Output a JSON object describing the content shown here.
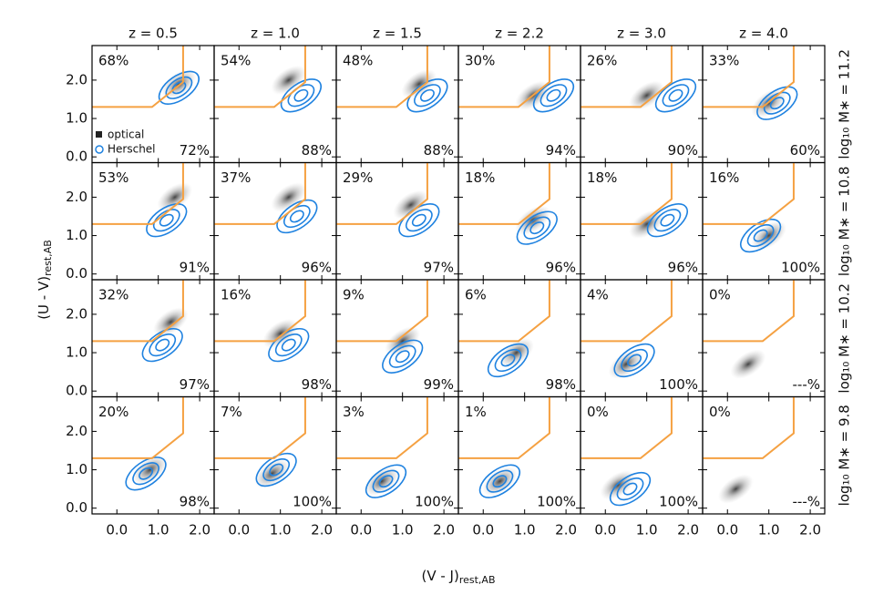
{
  "chart_data": {
    "type": "contour",
    "columns": [
      "z = 0.5",
      "z = 1.0",
      "z = 1.5",
      "z = 2.2",
      "z = 3.0",
      "z = 4.0"
    ],
    "rows": [
      "log₁₀ M∗ = 11.2",
      "log₁₀ M∗ = 10.8",
      "log₁₀ M∗ = 10.2",
      "log₁₀ M∗ = 9.8"
    ],
    "xlabel": {
      "main": "(V - J)",
      "sub": "rest,AB"
    },
    "ylabel": {
      "main": "(U - V)",
      "sub": "rest,AB"
    },
    "xlim": [
      -0.6,
      2.35
    ],
    "ylim": [
      -0.15,
      2.9
    ],
    "xticks": [
      {
        "value": 0,
        "label": "0.0"
      },
      {
        "value": 1,
        "label": "1.0"
      },
      {
        "value": 2,
        "label": "2.0"
      }
    ],
    "yticks": [
      {
        "value": 0,
        "label": "0.0"
      },
      {
        "value": 1,
        "label": "1.0"
      },
      {
        "value": 2,
        "label": "2.0"
      }
    ],
    "selection": {
      "color": "#f5a142",
      "x": [
        -0.6,
        0.85,
        1.6,
        1.6
      ],
      "y": [
        1.3,
        1.3,
        1.95,
        2.9
      ]
    },
    "series": [
      {
        "name": "optical",
        "color": "#222222",
        "values": [
          [
            68,
            54,
            48,
            30,
            26,
            33
          ],
          [
            53,
            37,
            29,
            18,
            18,
            16
          ],
          [
            32,
            16,
            9,
            6,
            4,
            0
          ],
          [
            20,
            7,
            3,
            1,
            0,
            0
          ]
        ],
        "value_labels": [
          [
            "68%",
            "54%",
            "48%",
            "30%",
            "26%",
            "33%"
          ],
          [
            "53%",
            "37%",
            "29%",
            "18%",
            "18%",
            "16%"
          ],
          [
            "32%",
            "16%",
            "9%",
            "6%",
            "4%",
            "0%"
          ],
          [
            "20%",
            "7%",
            "3%",
            "1%",
            "0%",
            "0%"
          ]
        ],
        "centers": [
          [
            [
              1.5,
              1.9
            ],
            [
              1.2,
              2.0
            ],
            [
              1.4,
              1.9
            ],
            [
              1.2,
              1.6
            ],
            [
              1.0,
              1.6
            ],
            [
              1.0,
              1.4
            ]
          ],
          [
            [
              1.4,
              2.0
            ],
            [
              1.2,
              2.0
            ],
            [
              1.2,
              1.8
            ],
            [
              1.2,
              1.4
            ],
            [
              1.0,
              1.3
            ],
            [
              1.0,
              1.0
            ]
          ],
          [
            [
              1.3,
              1.8
            ],
            [
              1.0,
              1.5
            ],
            [
              1.0,
              1.3
            ],
            [
              0.8,
              1.0
            ],
            [
              0.5,
              0.7
            ],
            [
              0.5,
              0.7
            ]
          ],
          [
            [
              0.8,
              1.0
            ],
            [
              0.8,
              0.9
            ],
            [
              0.5,
              0.7
            ],
            [
              0.4,
              0.7
            ],
            [
              0.3,
              0.6
            ],
            [
              0.2,
              0.5
            ]
          ]
        ]
      },
      {
        "name": "Herschel",
        "color": "#1f82e0",
        "values": [
          [
            72,
            88,
            88,
            94,
            90,
            60
          ],
          [
            91,
            96,
            97,
            96,
            96,
            100
          ],
          [
            97,
            98,
            99,
            98,
            100,
            null
          ],
          [
            98,
            100,
            100,
            100,
            100,
            null
          ]
        ],
        "value_labels": [
          [
            "72%",
            "88%",
            "88%",
            "94%",
            "90%",
            "60%"
          ],
          [
            "91%",
            "96%",
            "97%",
            "96%",
            "96%",
            "100%"
          ],
          [
            "97%",
            "98%",
            "99%",
            "98%",
            "100%",
            "---%"
          ],
          [
            "98%",
            "100%",
            "100%",
            "100%",
            "100%",
            "---%"
          ]
        ],
        "centers": [
          [
            [
              1.5,
              1.8
            ],
            [
              1.5,
              1.6
            ],
            [
              1.6,
              1.6
            ],
            [
              1.7,
              1.6
            ],
            [
              1.7,
              1.6
            ],
            [
              1.2,
              1.4
            ]
          ],
          [
            [
              1.2,
              1.4
            ],
            [
              1.4,
              1.5
            ],
            [
              1.4,
              1.4
            ],
            [
              1.3,
              1.2
            ],
            [
              1.5,
              1.4
            ],
            [
              0.8,
              1.0
            ]
          ],
          [
            [
              1.1,
              1.2
            ],
            [
              1.2,
              1.2
            ],
            [
              1.0,
              0.9
            ],
            [
              0.6,
              0.8
            ],
            [
              0.7,
              0.8
            ],
            null
          ],
          [
            [
              0.7,
              0.9
            ],
            [
              0.9,
              1.0
            ],
            [
              0.6,
              0.7
            ],
            [
              0.4,
              0.7
            ],
            [
              0.6,
              0.5
            ],
            null
          ]
        ]
      }
    ]
  }
}
